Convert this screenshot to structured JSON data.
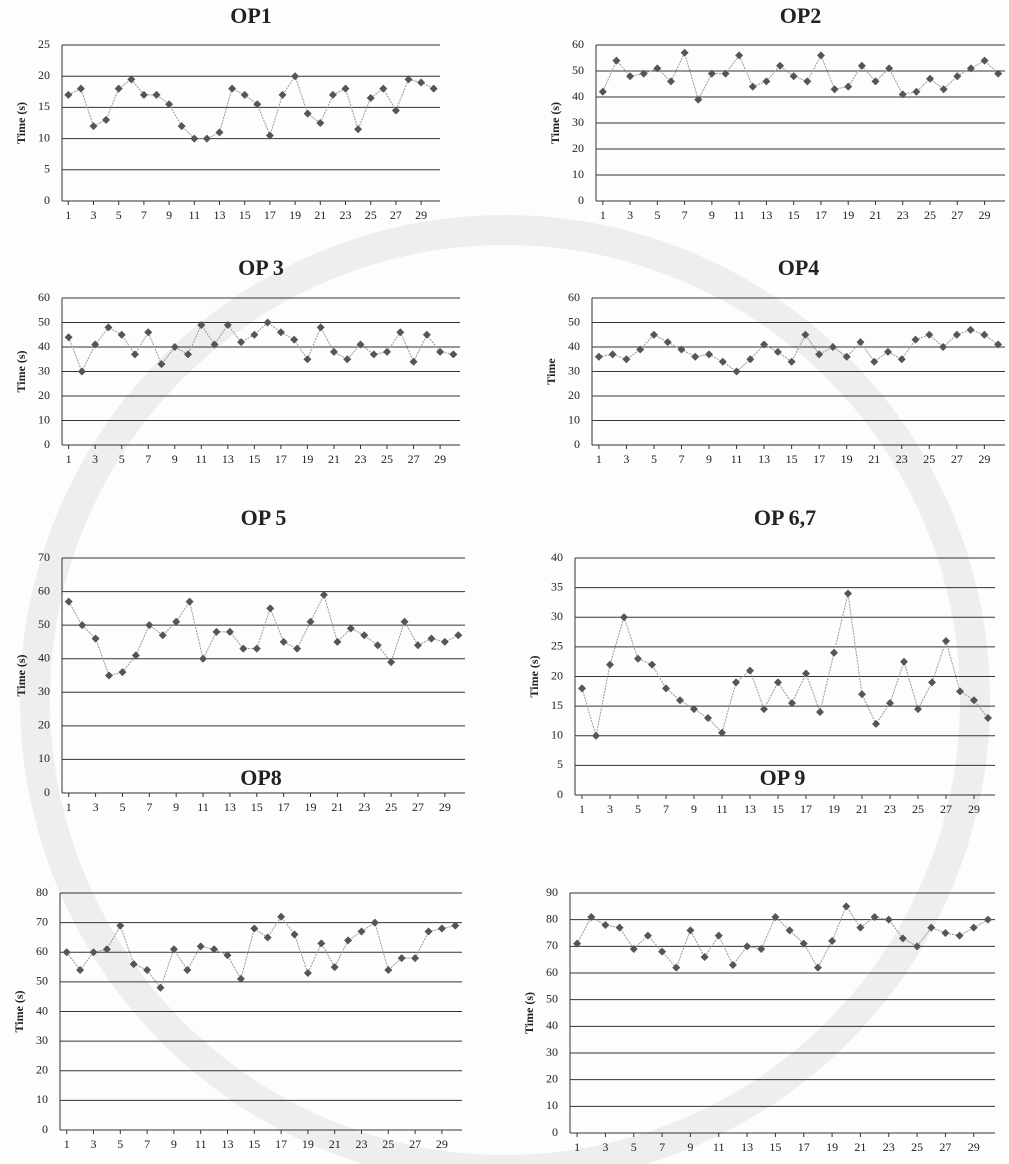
{
  "chart_data": [
    {
      "type": "line",
      "title": "OP1",
      "y_label": "Time (s)",
      "color": "#555555",
      "grid": true,
      "x": [
        1,
        2,
        3,
        4,
        5,
        6,
        7,
        8,
        9,
        10,
        11,
        12,
        13,
        14,
        15,
        16,
        17,
        18,
        19,
        20,
        21,
        22,
        23,
        24,
        25,
        26,
        27,
        28,
        29,
        30
      ],
      "values": [
        17,
        18,
        12,
        13,
        18,
        19.5,
        17,
        17,
        15.5,
        12,
        10,
        10,
        11,
        18,
        17,
        15.5,
        10.5,
        17,
        20,
        14,
        12.5,
        17,
        18,
        11.5,
        16.5,
        18,
        14.5,
        19.5,
        19,
        18
      ],
      "xlim": [
        0.5,
        30.5
      ],
      "xticks": [
        1,
        3,
        5,
        7,
        9,
        11,
        13,
        15,
        17,
        19,
        21,
        23,
        25,
        27,
        29
      ],
      "ylim": [
        0,
        25
      ],
      "yticks": [
        0,
        5,
        10,
        15,
        20,
        25
      ]
    },
    {
      "type": "line",
      "title": "OP2",
      "y_label": "Time (s)",
      "color": "#555555",
      "grid": true,
      "x": [
        1,
        2,
        3,
        4,
        5,
        6,
        7,
        8,
        9,
        10,
        11,
        12,
        13,
        14,
        15,
        16,
        17,
        18,
        19,
        20,
        21,
        22,
        23,
        24,
        25,
        26,
        27,
        28,
        29,
        30
      ],
      "values": [
        42,
        54,
        48,
        49,
        51,
        46,
        57,
        39,
        49,
        49,
        56,
        44,
        46,
        52,
        48,
        46,
        56,
        43,
        44,
        52,
        46,
        51,
        41,
        42,
        47,
        43,
        48,
        51,
        54,
        49
      ],
      "xlim": [
        0.5,
        30.5
      ],
      "xticks": [
        1,
        3,
        5,
        7,
        9,
        11,
        13,
        15,
        17,
        19,
        21,
        23,
        25,
        27,
        29
      ],
      "ylim": [
        0,
        60
      ],
      "yticks": [
        0,
        10,
        20,
        30,
        40,
        50,
        60
      ]
    },
    {
      "type": "line",
      "title": "OP 3",
      "y_label": "Time (s)",
      "color": "#555555",
      "grid": true,
      "x": [
        1,
        2,
        3,
        4,
        5,
        6,
        7,
        8,
        9,
        10,
        11,
        12,
        13,
        14,
        15,
        16,
        17,
        18,
        19,
        20,
        21,
        22,
        23,
        24,
        25,
        26,
        27,
        28,
        29,
        30
      ],
      "values": [
        44,
        30,
        41,
        48,
        45,
        37,
        46,
        33,
        40,
        37,
        49,
        41,
        49,
        42,
        45,
        50,
        46,
        43,
        35,
        48,
        38,
        35,
        41,
        37,
        38,
        46,
        34,
        45,
        38,
        37
      ],
      "xlim": [
        0.5,
        30.5
      ],
      "xticks": [
        1,
        3,
        5,
        7,
        9,
        11,
        13,
        15,
        17,
        19,
        21,
        23,
        25,
        27,
        29
      ],
      "ylim": [
        0,
        60
      ],
      "yticks": [
        0,
        10,
        20,
        30,
        40,
        50,
        60
      ]
    },
    {
      "type": "line",
      "title": "OP4",
      "y_label": "Time",
      "color": "#555555",
      "grid": true,
      "x": [
        1,
        2,
        3,
        4,
        5,
        6,
        7,
        8,
        9,
        10,
        11,
        12,
        13,
        14,
        15,
        16,
        17,
        18,
        19,
        20,
        21,
        22,
        23,
        24,
        25,
        26,
        27,
        28,
        29,
        30
      ],
      "values": [
        36,
        37,
        35,
        39,
        45,
        42,
        39,
        36,
        37,
        34,
        30,
        35,
        41,
        38,
        34,
        45,
        37,
        40,
        36,
        42,
        34,
        38,
        35,
        43,
        45,
        40,
        45,
        47,
        45,
        41
      ],
      "xlim": [
        0.5,
        30.5
      ],
      "xticks": [
        1,
        3,
        5,
        7,
        9,
        11,
        13,
        15,
        17,
        19,
        21,
        23,
        25,
        27,
        29
      ],
      "ylim": [
        0,
        60
      ],
      "yticks": [
        0,
        10,
        20,
        30,
        40,
        50,
        60
      ]
    },
    {
      "type": "line",
      "title": "OP 5",
      "y_label": "Time (s)",
      "color": "#555555",
      "grid": true,
      "x": [
        1,
        2,
        3,
        4,
        5,
        6,
        7,
        8,
        9,
        10,
        11,
        12,
        13,
        14,
        15,
        16,
        17,
        18,
        19,
        20,
        21,
        22,
        23,
        24,
        25,
        26,
        27,
        28,
        29,
        30
      ],
      "values": [
        57,
        50,
        46,
        35,
        36,
        41,
        50,
        47,
        51,
        57,
        40,
        48,
        48,
        43,
        43,
        55,
        45,
        43,
        51,
        59,
        45,
        49,
        47,
        44,
        39,
        51,
        44,
        46,
        45,
        47
      ],
      "xlim": [
        0.5,
        30.5
      ],
      "xticks": [
        1,
        3,
        5,
        7,
        9,
        11,
        13,
        15,
        17,
        19,
        21,
        23,
        25,
        27,
        29
      ],
      "ylim": [
        0,
        70
      ],
      "yticks": [
        0,
        10,
        20,
        30,
        40,
        50,
        60,
        70
      ]
    },
    {
      "type": "line",
      "title": "OP 6,7",
      "y_label": "Time (s)",
      "color": "#555555",
      "grid": true,
      "x": [
        1,
        2,
        3,
        4,
        5,
        6,
        7,
        8,
        9,
        10,
        11,
        12,
        13,
        14,
        15,
        16,
        17,
        18,
        19,
        20,
        21,
        22,
        23,
        24,
        25,
        26,
        27,
        28,
        29,
        30
      ],
      "values": [
        18,
        10,
        22,
        30,
        23,
        22,
        18,
        16,
        14.5,
        13,
        10.5,
        19,
        21,
        14.5,
        19,
        15.5,
        20.5,
        14,
        24,
        34,
        17,
        12,
        15.5,
        22.5,
        14.5,
        19,
        26,
        17.5,
        16,
        13
      ],
      "xlim": [
        0.5,
        30.5
      ],
      "xticks": [
        1,
        3,
        5,
        7,
        9,
        11,
        13,
        15,
        17,
        19,
        21,
        23,
        25,
        27,
        29
      ],
      "ylim": [
        0,
        40
      ],
      "yticks": [
        0,
        5,
        10,
        15,
        20,
        25,
        30,
        35,
        40
      ]
    },
    {
      "type": "line",
      "title": "OP8",
      "y_label": "Time (s)",
      "color": "#555555",
      "grid": true,
      "x": [
        1,
        2,
        3,
        4,
        5,
        6,
        7,
        8,
        9,
        10,
        11,
        12,
        13,
        14,
        15,
        16,
        17,
        18,
        19,
        20,
        21,
        22,
        23,
        24,
        25,
        26,
        27,
        28,
        29,
        30
      ],
      "values": [
        60,
        54,
        60,
        61,
        69,
        56,
        54,
        48,
        61,
        54,
        62,
        61,
        59,
        51,
        68,
        65,
        72,
        66,
        53,
        63,
        55,
        64,
        67,
        70,
        54,
        58,
        58,
        67,
        68,
        69
      ],
      "xlim": [
        0.5,
        30.5
      ],
      "xticks": [
        1,
        3,
        5,
        7,
        9,
        11,
        13,
        15,
        17,
        19,
        21,
        23,
        25,
        27,
        29
      ],
      "ylim": [
        0,
        80
      ],
      "yticks": [
        0,
        10,
        20,
        30,
        40,
        50,
        60,
        70,
        80
      ]
    },
    {
      "type": "line",
      "title": "OP 9",
      "y_label": "Time (s)",
      "color": "#555555",
      "grid": true,
      "x": [
        1,
        2,
        3,
        4,
        5,
        6,
        7,
        8,
        9,
        10,
        11,
        12,
        13,
        14,
        15,
        16,
        17,
        18,
        19,
        20,
        21,
        22,
        23,
        24,
        25,
        26,
        27,
        28,
        29,
        30
      ],
      "values": [
        71,
        81,
        78,
        77,
        69,
        74,
        68,
        62,
        76,
        66,
        74,
        63,
        70,
        69,
        81,
        76,
        71,
        62,
        72,
        85,
        77,
        81,
        80,
        73,
        70,
        77,
        75,
        74,
        77,
        80
      ],
      "xlim": [
        0.5,
        30.5
      ],
      "xticks": [
        1,
        3,
        5,
        7,
        9,
        11,
        13,
        15,
        17,
        19,
        21,
        23,
        25,
        27,
        29
      ],
      "ylim": [
        0,
        90
      ],
      "yticks": [
        0,
        10,
        20,
        30,
        40,
        50,
        60,
        70,
        80,
        90
      ]
    }
  ]
}
